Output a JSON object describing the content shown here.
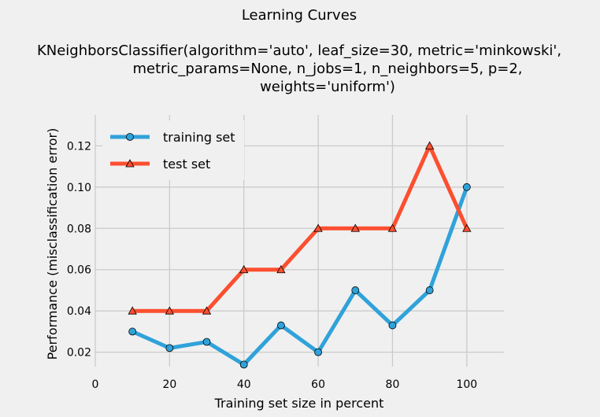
{
  "chart_data": {
    "type": "line",
    "title": "Learning Curves",
    "subtitle_lines": [
      "KNeighborsClassifier(algorithm='auto', leaf_size=30, metric='minkowski',",
      "metric_params=None, n_jobs=1, n_neighbors=5, p=2,",
      "weights='uniform')"
    ],
    "xlabel": "Training set size in percent",
    "ylabel": "Performance (misclassification error)",
    "xlim": [
      0,
      110
    ],
    "ylim": [
      0.013,
      0.135
    ],
    "x_ticks": [
      0,
      20,
      40,
      60,
      80,
      100
    ],
    "y_ticks": [
      0.02,
      0.04,
      0.06,
      0.08,
      0.1,
      0.12
    ],
    "y_tick_labels": [
      "0.02",
      "0.04",
      "0.06",
      "0.08",
      "0.10",
      "0.12"
    ],
    "grid": true,
    "legend_position": "upper-left",
    "x": [
      10,
      20,
      30,
      40,
      50,
      60,
      70,
      80,
      90,
      100
    ],
    "series": [
      {
        "name": "training set",
        "color": "#30a2da",
        "marker": "circle",
        "values": [
          0.03,
          0.022,
          0.025,
          0.014,
          0.033,
          0.02,
          0.05,
          0.033,
          0.05,
          0.1
        ]
      },
      {
        "name": "test set",
        "color": "#fc4f30",
        "marker": "triangle",
        "values": [
          0.04,
          0.04,
          0.04,
          0.06,
          0.06,
          0.08,
          0.08,
          0.08,
          0.12,
          0.08
        ]
      }
    ]
  }
}
